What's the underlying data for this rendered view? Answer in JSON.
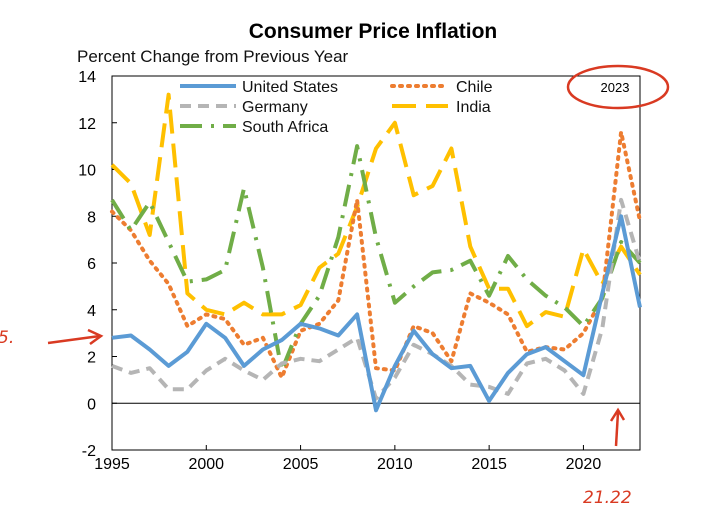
{
  "chart_data": {
    "type": "line",
    "title": "Consumer Price Inflation",
    "subtitle": "Percent Change from Previous Year",
    "xlabel": "",
    "ylabel": "",
    "xlim": [
      1995,
      2023
    ],
    "ylim": [
      -2,
      14
    ],
    "x_ticks": [
      1995,
      2000,
      2005,
      2010,
      2015,
      2020
    ],
    "y_ticks": [
      -2,
      0,
      2,
      4,
      6,
      8,
      10,
      12,
      14
    ],
    "grid": false,
    "legend_position": "top",
    "badge": "2023",
    "x": [
      1995,
      1996,
      1997,
      1998,
      1999,
      2000,
      2001,
      2002,
      2003,
      2004,
      2005,
      2006,
      2007,
      2008,
      2009,
      2010,
      2011,
      2012,
      2013,
      2014,
      2015,
      2016,
      2017,
      2018,
      2019,
      2020,
      2021,
      2022,
      2023
    ],
    "series": [
      {
        "name": "United States",
        "color": "#5b9bd5",
        "style": "solid",
        "values": [
          2.8,
          2.9,
          2.3,
          1.6,
          2.2,
          3.4,
          2.8,
          1.6,
          2.3,
          2.7,
          3.4,
          3.2,
          2.9,
          3.8,
          -0.3,
          1.6,
          3.1,
          2.1,
          1.5,
          1.6,
          0.1,
          1.3,
          2.1,
          2.4,
          1.8,
          1.2,
          4.7,
          8.0,
          4.1
        ]
      },
      {
        "name": "Germany",
        "color": "#b5b5b5",
        "style": "dashed",
        "values": [
          1.6,
          1.3,
          1.5,
          0.6,
          0.6,
          1.4,
          1.9,
          1.4,
          1.0,
          1.7,
          1.9,
          1.8,
          2.3,
          2.8,
          0.2,
          1.1,
          2.5,
          2.1,
          1.6,
          0.8,
          0.7,
          0.4,
          1.7,
          1.9,
          1.4,
          0.4,
          3.2,
          8.7,
          6.0
        ]
      },
      {
        "name": "South Africa",
        "color": "#70ad47",
        "style": "dashdot",
        "values": [
          8.7,
          7.4,
          8.6,
          6.9,
          5.2,
          5.3,
          5.7,
          9.2,
          5.8,
          1.4,
          3.4,
          4.6,
          7.1,
          11.0,
          7.1,
          4.3,
          5.0,
          5.6,
          5.7,
          6.1,
          4.6,
          6.3,
          5.3,
          4.6,
          4.1,
          3.3,
          4.5,
          6.9,
          6.0
        ]
      },
      {
        "name": "Chile",
        "color": "#ed7d31",
        "style": "dotted",
        "values": [
          8.2,
          7.4,
          6.1,
          5.1,
          3.3,
          3.8,
          3.6,
          2.5,
          2.8,
          1.1,
          3.1,
          3.4,
          4.4,
          8.7,
          1.5,
          1.4,
          3.3,
          3.0,
          1.8,
          4.7,
          4.3,
          3.8,
          2.2,
          2.4,
          2.3,
          3.0,
          4.5,
          11.6,
          7.8
        ]
      },
      {
        "name": "India",
        "color": "#ffc000",
        "style": "longdash",
        "values": [
          10.2,
          9.4,
          7.2,
          13.2,
          4.7,
          4.0,
          3.8,
          4.3,
          3.8,
          3.8,
          4.2,
          5.8,
          6.4,
          8.4,
          10.9,
          12.0,
          8.9,
          9.3,
          10.9,
          6.7,
          4.9,
          4.9,
          3.3,
          3.9,
          3.7,
          6.6,
          5.1,
          6.7,
          5.5
        ]
      }
    ]
  },
  "annotations": {
    "left_mark": "5.",
    "bottom_mark": "21.22"
  }
}
